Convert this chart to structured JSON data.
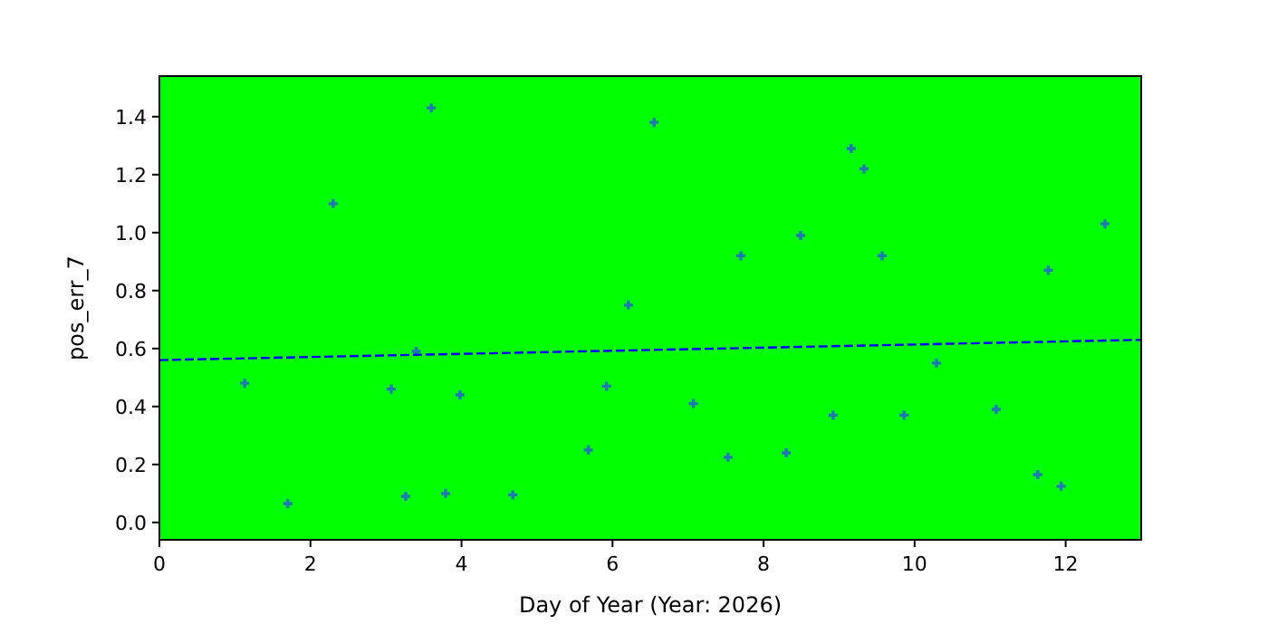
{
  "chart_data": {
    "type": "scatter",
    "xlabel": "Day of Year (Year: 2026)",
    "ylabel": "pos_err_7",
    "xlim": [
      0,
      13
    ],
    "ylim": [
      -0.06,
      1.54
    ],
    "xticks": [
      0,
      2,
      4,
      6,
      8,
      10,
      12
    ],
    "yticks": [
      {
        "value": 0,
        "label": "0.0"
      },
      {
        "value": 0.2,
        "label": "0.2"
      },
      {
        "value": 0.4,
        "label": "0.4"
      },
      {
        "value": 0.6,
        "label": "0.6"
      },
      {
        "value": 0.8,
        "label": "0.8"
      },
      {
        "value": 1,
        "label": "1.0"
      },
      {
        "value": 1.2,
        "label": "1.2"
      },
      {
        "value": 1.4,
        "label": "1.4"
      }
    ],
    "grid": false,
    "marker": "cross",
    "series": [
      {
        "color": "#1f77b4",
        "x": [
          1.13,
          1.7,
          2.3,
          3.07,
          3.26,
          3.4,
          3.6,
          3.79,
          3.98,
          4.68,
          5.68,
          5.92,
          6.21,
          6.55,
          7.07,
          7.53,
          7.7,
          8.3,
          8.49,
          8.92,
          9.16,
          9.33,
          9.57,
          9.86,
          10.29,
          11.08,
          11.63,
          11.77,
          11.94,
          12.52
        ],
        "values": [
          0.48,
          0.065,
          1.1,
          0.46,
          0.09,
          0.59,
          1.43,
          0.1,
          0.44,
          0.095,
          0.25,
          0.47,
          0.75,
          1.38,
          0.41,
          0.225,
          0.92,
          0.24,
          0.99,
          0.37,
          1.29,
          1.22,
          0.92,
          0.37,
          0.55,
          0.39,
          0.165,
          0.87,
          0.125,
          1.03
        ]
      },
      {
        "type": "line",
        "color": "#0000ff",
        "line_style": "dashed",
        "marker": "none",
        "x": [
          0,
          13
        ],
        "values": [
          0.56,
          0.63
        ]
      }
    ]
  }
}
